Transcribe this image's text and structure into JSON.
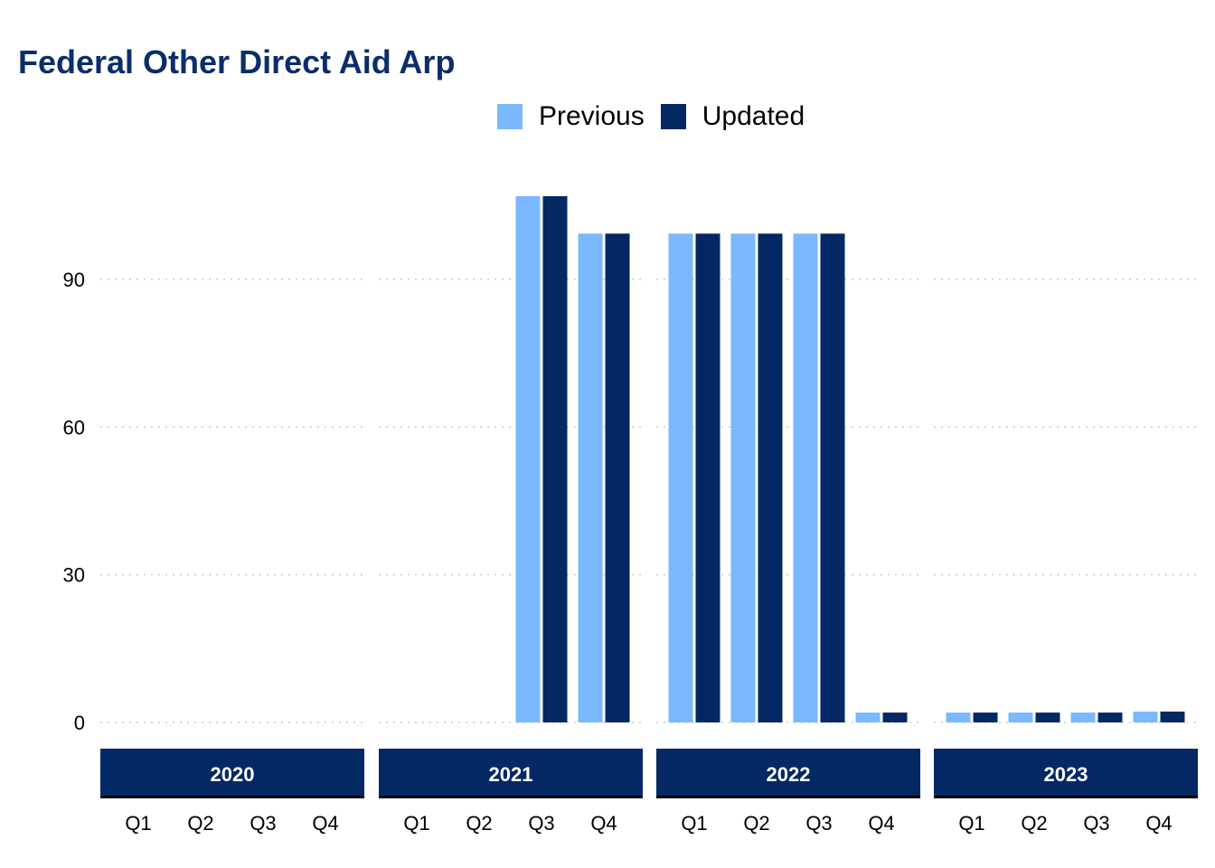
{
  "chart_data": {
    "type": "bar",
    "title": "Federal Other Direct Aid Arp",
    "xlabel": "",
    "ylabel": "",
    "ylim": [
      0,
      120
    ],
    "yticks": [
      0,
      30,
      60,
      90
    ],
    "grid": true,
    "legend_position": "top",
    "panels": [
      "2020",
      "2021",
      "2022",
      "2023"
    ],
    "categories": [
      "Q1",
      "Q2",
      "Q3",
      "Q4"
    ],
    "series": [
      {
        "name": "Previous",
        "color": "#7ab8ff",
        "values": [
          [
            0,
            0,
            0,
            0
          ],
          [
            0,
            0,
            106.9,
            99.3
          ],
          [
            99.3,
            99.3,
            99.3,
            2.0
          ],
          [
            2.0,
            2.0,
            2.0,
            2.2
          ]
        ]
      },
      {
        "name": "Updated",
        "color": "#042864",
        "values": [
          [
            0,
            0,
            0,
            0
          ],
          [
            0,
            0,
            106.9,
            99.3
          ],
          [
            99.3,
            99.3,
            99.3,
            2.0
          ],
          [
            2.0,
            2.0,
            2.0,
            2.2
          ]
        ]
      }
    ]
  }
}
